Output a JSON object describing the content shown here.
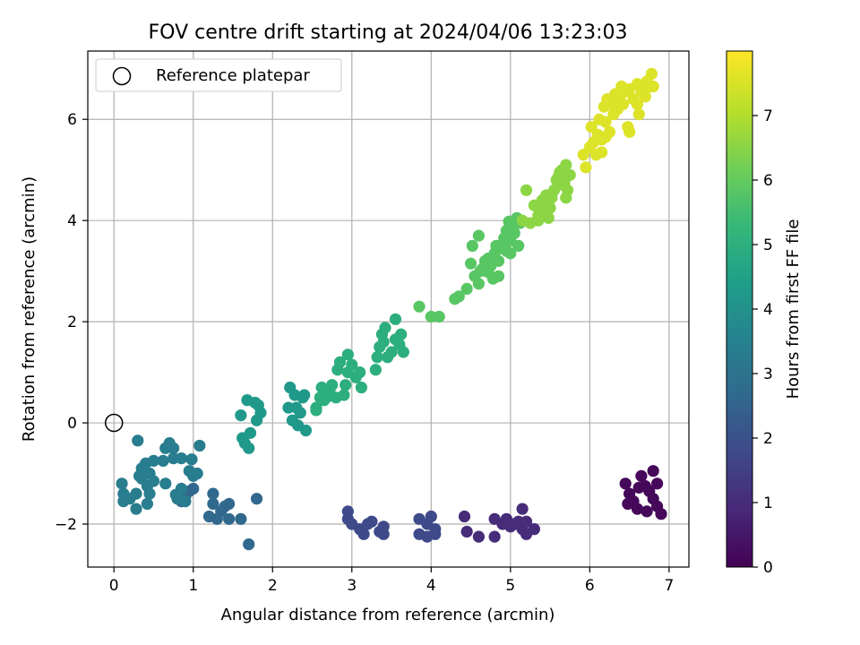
{
  "chart_data": {
    "type": "scatter",
    "title": "FOV centre drift starting at 2024/04/06 13:23:03",
    "xlabel": "Angular distance from reference (arcmin)",
    "ylabel": "Rotation from reference (arcmin)",
    "xlim": [
      -0.33,
      7.25
    ],
    "ylim": [
      -2.85,
      7.35
    ],
    "x_ticks": [
      "0",
      "1",
      "2",
      "3",
      "4",
      "5",
      "6",
      "7"
    ],
    "y_ticks": [
      "−2",
      "0",
      "2",
      "4",
      "6"
    ],
    "grid": true,
    "legend": {
      "position": "top-left",
      "entries": [
        "Reference platepar"
      ]
    },
    "reference_point": {
      "x": 0,
      "y": 0
    },
    "colorbar": {
      "label": "Hours from first FF file",
      "range": [
        0,
        8
      ],
      "ticks": [
        "0",
        "1",
        "2",
        "3",
        "4",
        "5",
        "6",
        "7"
      ],
      "colormap": "viridis",
      "colors": [
        "#440154",
        "#482878",
        "#3e4989",
        "#31688e",
        "#26828e",
        "#1f9e89",
        "#35b779",
        "#6ece58",
        "#b5de2b",
        "#fde725"
      ]
    },
    "series": [
      {
        "hours": 0.15,
        "points": [
          [
            6.45,
            -1.2
          ],
          [
            6.5,
            -1.4
          ],
          [
            6.55,
            -1.55
          ],
          [
            6.6,
            -1.7
          ],
          [
            6.65,
            -1.05
          ],
          [
            6.7,
            -1.25
          ],
          [
            6.75,
            -1.35
          ],
          [
            6.8,
            -1.5
          ],
          [
            6.8,
            -0.95
          ],
          [
            6.85,
            -1.2
          ],
          [
            6.85,
            -1.65
          ],
          [
            6.9,
            -1.8
          ],
          [
            6.48,
            -1.6
          ],
          [
            6.72,
            -1.75
          ],
          [
            6.62,
            -1.28
          ]
        ]
      },
      {
        "hours": 1.0,
        "points": [
          [
            4.8,
            -1.9
          ],
          [
            4.9,
            -2.0
          ],
          [
            4.95,
            -1.9
          ],
          [
            5.0,
            -2.05
          ],
          [
            5.05,
            -2.0
          ],
          [
            5.1,
            -1.95
          ],
          [
            5.15,
            -2.1
          ],
          [
            5.2,
            -1.95
          ],
          [
            5.2,
            -2.2
          ],
          [
            5.3,
            -2.1
          ],
          [
            5.15,
            -1.7
          ],
          [
            4.6,
            -2.25
          ],
          [
            4.8,
            -2.25
          ],
          [
            4.42,
            -1.85
          ],
          [
            4.45,
            -2.15
          ]
        ]
      },
      {
        "hours": 1.8,
        "points": [
          [
            2.95,
            -1.75
          ],
          [
            2.95,
            -1.9
          ],
          [
            3.0,
            -2.0
          ],
          [
            3.1,
            -2.1
          ],
          [
            3.15,
            -2.2
          ],
          [
            3.2,
            -2.0
          ],
          [
            3.25,
            -1.95
          ],
          [
            3.4,
            -2.05
          ],
          [
            3.4,
            -2.2
          ],
          [
            3.85,
            -2.2
          ],
          [
            3.85,
            -1.9
          ],
          [
            3.95,
            -2.25
          ],
          [
            3.95,
            -2.0
          ],
          [
            4.0,
            -1.85
          ],
          [
            4.05,
            -2.1
          ],
          [
            4.05,
            -2.2
          ],
          [
            3.35,
            -2.15
          ]
        ]
      },
      {
        "hours": 2.7,
        "points": [
          [
            1.2,
            -1.85
          ],
          [
            1.25,
            -1.6
          ],
          [
            1.25,
            -1.4
          ],
          [
            1.3,
            -1.9
          ],
          [
            1.35,
            -1.75
          ],
          [
            1.4,
            -1.65
          ],
          [
            1.45,
            -1.9
          ],
          [
            1.45,
            -1.6
          ],
          [
            1.6,
            -1.9
          ],
          [
            1.7,
            -2.4
          ],
          [
            1.8,
            -1.5
          ],
          [
            0.95,
            -1.35
          ],
          [
            0.85,
            -1.55
          ],
          [
            0.9,
            -1.45
          ],
          [
            1.0,
            -1.3
          ]
        ]
      },
      {
        "hours": 3.4,
        "points": [
          [
            0.1,
            -1.2
          ],
          [
            0.12,
            -1.4
          ],
          [
            0.12,
            -1.55
          ],
          [
            0.2,
            -1.5
          ],
          [
            0.28,
            -1.4
          ],
          [
            0.28,
            -1.7
          ],
          [
            0.32,
            -1.05
          ],
          [
            0.35,
            -0.9
          ],
          [
            0.4,
            -0.8
          ],
          [
            0.42,
            -1.25
          ],
          [
            0.42,
            -1.6
          ],
          [
            0.45,
            -1.4
          ],
          [
            0.45,
            -1.0
          ],
          [
            0.5,
            -0.75
          ],
          [
            0.3,
            -0.35
          ],
          [
            0.62,
            -0.75
          ],
          [
            0.65,
            -1.2
          ],
          [
            0.7,
            -0.4
          ],
          [
            0.75,
            -0.5
          ],
          [
            0.75,
            -0.7
          ],
          [
            0.8,
            -1.5
          ],
          [
            0.85,
            -0.7
          ],
          [
            0.85,
            -1.3
          ],
          [
            0.9,
            -1.55
          ],
          [
            0.95,
            -0.95
          ],
          [
            1.0,
            -1.05
          ],
          [
            1.05,
            -1.0
          ],
          [
            1.08,
            -0.45
          ],
          [
            0.65,
            -0.5
          ],
          [
            0.5,
            -1.15
          ],
          [
            0.35,
            -1.1
          ],
          [
            0.98,
            -0.72
          ],
          [
            0.78,
            -1.42
          ]
        ]
      },
      {
        "hours": 4.3,
        "points": [
          [
            1.6,
            0.15
          ],
          [
            1.62,
            -0.3
          ],
          [
            1.65,
            -0.4
          ],
          [
            1.68,
            0.45
          ],
          [
            1.7,
            -0.5
          ],
          [
            1.72,
            -0.2
          ],
          [
            1.78,
            0.4
          ],
          [
            1.8,
            0.05
          ],
          [
            1.82,
            0.35
          ],
          [
            1.85,
            0.2
          ],
          [
            2.2,
            0.3
          ],
          [
            2.22,
            0.7
          ],
          [
            2.25,
            0.05
          ],
          [
            2.28,
            0.55
          ],
          [
            2.3,
            0.3
          ],
          [
            2.32,
            -0.05
          ],
          [
            2.35,
            0.2
          ],
          [
            2.38,
            0.5
          ],
          [
            2.4,
            0.55
          ],
          [
            2.42,
            -0.15
          ]
        ]
      },
      {
        "hours": 5.0,
        "points": [
          [
            2.55,
            0.3
          ],
          [
            2.6,
            0.5
          ],
          [
            2.62,
            0.7
          ],
          [
            2.65,
            0.45
          ],
          [
            2.7,
            0.6
          ],
          [
            2.75,
            0.75
          ],
          [
            2.8,
            0.5
          ],
          [
            2.82,
            1.05
          ],
          [
            2.85,
            1.2
          ],
          [
            2.9,
            0.55
          ],
          [
            2.92,
            0.75
          ],
          [
            2.95,
            1.0
          ],
          [
            2.95,
            1.35
          ],
          [
            3.0,
            1.15
          ],
          [
            3.05,
            0.9
          ],
          [
            3.1,
            1.0
          ],
          [
            3.12,
            0.7
          ],
          [
            3.3,
            1.05
          ],
          [
            3.32,
            1.3
          ],
          [
            3.35,
            1.5
          ],
          [
            3.38,
            1.75
          ],
          [
            3.4,
            1.6
          ],
          [
            3.45,
            1.3
          ],
          [
            3.5,
            1.4
          ],
          [
            3.55,
            1.65
          ],
          [
            3.6,
            1.55
          ],
          [
            3.62,
            1.75
          ],
          [
            3.65,
            1.4
          ],
          [
            3.55,
            2.05
          ],
          [
            2.55,
            0.25
          ],
          [
            2.68,
            0.5
          ],
          [
            2.72,
            0.65
          ],
          [
            3.42,
            1.88
          ]
        ]
      },
      {
        "hours": 5.9,
        "points": [
          [
            3.85,
            2.3
          ],
          [
            4.0,
            2.1
          ],
          [
            4.1,
            2.1
          ],
          [
            4.3,
            2.45
          ],
          [
            4.35,
            2.5
          ],
          [
            4.45,
            2.65
          ],
          [
            4.5,
            3.15
          ],
          [
            4.52,
            3.5
          ],
          [
            4.55,
            2.9
          ],
          [
            4.6,
            2.75
          ],
          [
            4.62,
            3.0
          ],
          [
            4.65,
            3.05
          ],
          [
            4.68,
            3.2
          ],
          [
            4.7,
            3.0
          ],
          [
            4.72,
            3.25
          ],
          [
            4.75,
            3.1
          ],
          [
            4.78,
            2.85
          ],
          [
            4.8,
            3.35
          ],
          [
            4.82,
            3.5
          ],
          [
            4.85,
            3.2
          ],
          [
            4.9,
            3.45
          ],
          [
            4.92,
            3.65
          ],
          [
            4.95,
            3.8
          ],
          [
            5.0,
            3.35
          ],
          [
            5.02,
            3.9
          ],
          [
            5.05,
            3.75
          ],
          [
            5.08,
            4.05
          ],
          [
            5.1,
            3.5
          ],
          [
            5.12,
            3.95
          ],
          [
            4.6,
            3.7
          ],
          [
            4.85,
            2.9
          ],
          [
            4.95,
            3.4
          ],
          [
            5.0,
            3.6
          ],
          [
            4.98,
            3.98
          ],
          [
            4.72,
            2.98
          ]
        ]
      },
      {
        "hours": 6.6,
        "points": [
          [
            5.2,
            4.6
          ],
          [
            5.25,
            3.95
          ],
          [
            5.3,
            4.3
          ],
          [
            5.35,
            4.1
          ],
          [
            5.4,
            4.4
          ],
          [
            5.42,
            4.2
          ],
          [
            5.45,
            4.5
          ],
          [
            5.48,
            4.05
          ],
          [
            5.5,
            4.25
          ],
          [
            5.52,
            4.45
          ],
          [
            5.55,
            4.6
          ],
          [
            5.58,
            4.8
          ],
          [
            5.6,
            4.7
          ],
          [
            5.62,
            4.95
          ],
          [
            5.65,
            5.0
          ],
          [
            5.68,
            4.75
          ],
          [
            5.7,
            5.1
          ],
          [
            5.72,
            4.6
          ],
          [
            5.75,
            4.9
          ],
          [
            5.35,
            4.0
          ],
          [
            5.45,
            4.3
          ],
          [
            5.7,
            4.45
          ],
          [
            5.15,
            4.0
          ],
          [
            5.6,
            4.85
          ]
        ]
      },
      {
        "hours": 7.6,
        "points": [
          [
            5.92,
            5.3
          ],
          [
            5.95,
            5.05
          ],
          [
            6.0,
            5.45
          ],
          [
            6.02,
            5.85
          ],
          [
            6.05,
            5.55
          ],
          [
            6.08,
            5.3
          ],
          [
            6.1,
            5.7
          ],
          [
            6.12,
            6.0
          ],
          [
            6.15,
            5.6
          ],
          [
            6.18,
            6.25
          ],
          [
            6.2,
            5.95
          ],
          [
            6.22,
            6.4
          ],
          [
            6.25,
            5.75
          ],
          [
            6.28,
            6.3
          ],
          [
            6.3,
            6.1
          ],
          [
            6.32,
            6.5
          ],
          [
            6.35,
            6.2
          ],
          [
            6.38,
            6.45
          ],
          [
            6.4,
            6.65
          ],
          [
            6.42,
            6.3
          ],
          [
            6.45,
            6.55
          ],
          [
            6.48,
            5.85
          ],
          [
            6.5,
            5.75
          ],
          [
            6.55,
            6.4
          ],
          [
            6.6,
            6.7
          ],
          [
            6.62,
            6.1
          ],
          [
            6.65,
            6.55
          ],
          [
            6.7,
            6.6
          ],
          [
            6.72,
            6.75
          ],
          [
            6.75,
            6.65
          ],
          [
            6.78,
            6.9
          ],
          [
            6.8,
            6.65
          ],
          [
            6.6,
            6.3
          ],
          [
            6.7,
            6.45
          ],
          [
            6.5,
            6.6
          ],
          [
            6.3,
            6.35
          ],
          [
            6.2,
            5.65
          ],
          [
            6.15,
            5.35
          ]
        ]
      }
    ]
  }
}
